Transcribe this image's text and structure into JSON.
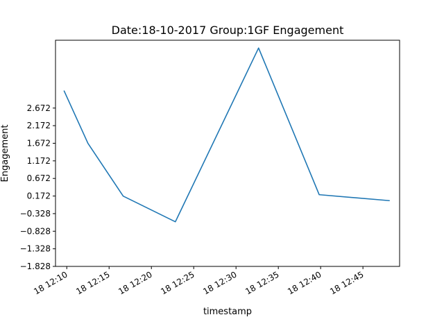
{
  "chart_data": {
    "type": "line",
    "title": "Date:18-10-2017 Group:1GF Engagement",
    "xlabel": "timestamp",
    "ylabel": "Engagement",
    "x": [
      "12:09:40",
      "12:12:30",
      "12:16:40",
      "12:22:50",
      "12:32:40",
      "12:39:50",
      "12:48:10"
    ],
    "series": [
      {
        "values": [
          3.17,
          1.67,
          0.17,
          -0.56,
          4.38,
          0.21,
          0.04
        ]
      }
    ],
    "xticks": [
      "18 12:10",
      "18 12:15",
      "18 12:20",
      "18 12:25",
      "18 12:30",
      "18 12:35",
      "18 12:40",
      "18 12:45"
    ],
    "xtick_times": [
      "12:10",
      "12:15",
      "12:20",
      "12:25",
      "12:30",
      "12:35",
      "12:40",
      "12:45"
    ],
    "xlim": [
      "12:08:40",
      "12:49:20"
    ],
    "yticks": [
      "-1.828",
      "-1.328",
      "-0.828",
      "-0.328",
      "0.172",
      "0.672",
      "1.172",
      "1.672",
      "2.172",
      "2.672"
    ],
    "ylim": [
      -1.828,
      4.6
    ],
    "grid": false,
    "line_color": "#1f77b4"
  }
}
